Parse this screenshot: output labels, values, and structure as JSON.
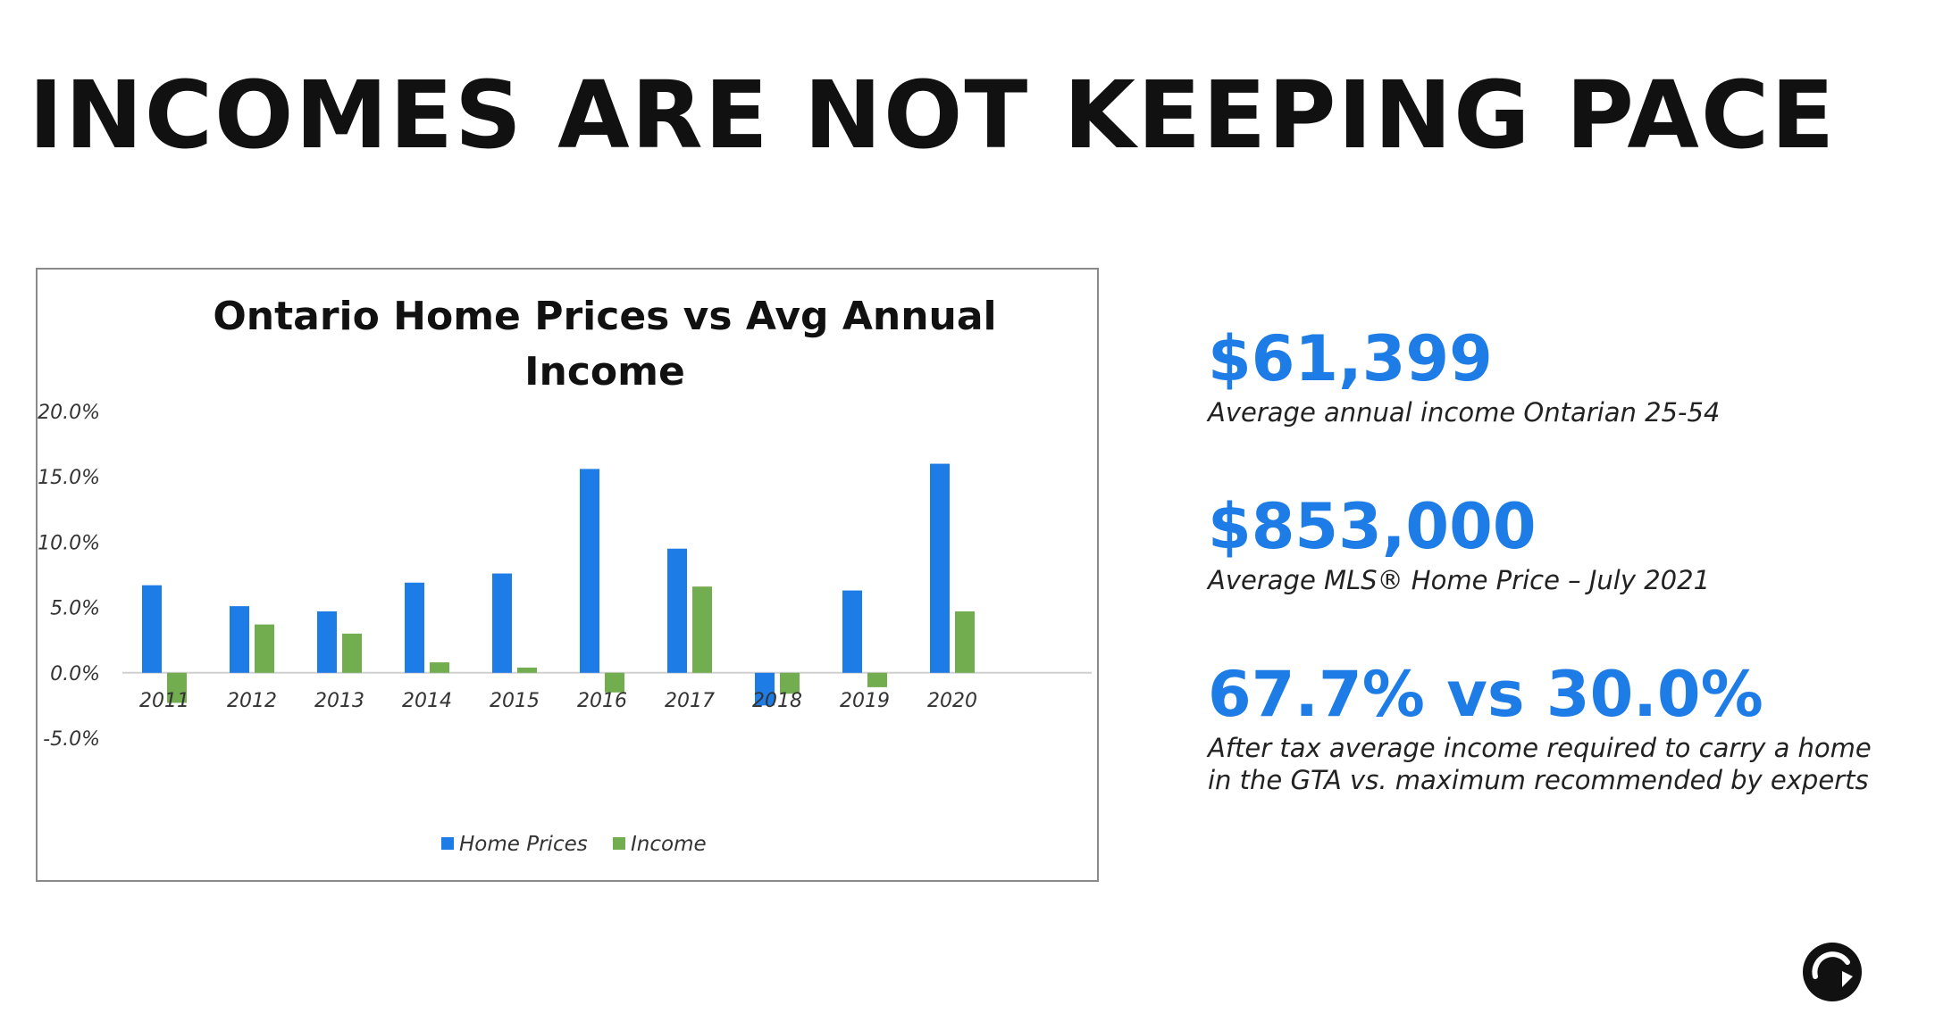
{
  "slide": {
    "title": "INCOMES ARE NOT KEEPING PACE"
  },
  "colors": {
    "accent": "#1e7ce6",
    "home_prices": "#1e7ce6",
    "income": "#72ad4f",
    "title": "#111111"
  },
  "stats": [
    {
      "value": "$61,399",
      "description": "Average annual income Ontarian 25-54"
    },
    {
      "value": "$853,000",
      "description": "Average MLS® Home Price – July 2021"
    },
    {
      "value": "67.7% vs 30.0%",
      "description": "After tax average income required to carry a home\nin the GTA vs. maximum recommended by experts"
    }
  ],
  "logo": {
    "icon": "circular-arrow-logo-icon"
  },
  "chart_data": {
    "type": "bar",
    "title": "Ontario Home Prices vs Avg Annual Income",
    "categories": [
      "2011",
      "2012",
      "2013",
      "2014",
      "2015",
      "2016",
      "2017",
      "2018",
      "2019",
      "2020"
    ],
    "series": [
      {
        "name": "Home Prices",
        "color": "#1e7ce6",
        "values": [
          6.7,
          5.1,
          4.7,
          6.9,
          7.6,
          15.6,
          9.5,
          -2.5,
          6.3,
          16.0
        ]
      },
      {
        "name": "Income",
        "color": "#72ad4f",
        "values": [
          -2.3,
          3.7,
          3.0,
          0.8,
          0.4,
          -1.5,
          6.6,
          -1.6,
          -1.1,
          4.7
        ]
      }
    ],
    "ylim": [
      -5,
      20
    ],
    "yticks": [
      "20.0%",
      "15.0%",
      "10.0%",
      "5.0%",
      "0.0%",
      "-5.0%"
    ],
    "ytick_values": [
      20,
      15,
      10,
      5,
      0,
      -5
    ],
    "xlabel": "",
    "ylabel": "",
    "grid": false,
    "legend": "bottom"
  }
}
